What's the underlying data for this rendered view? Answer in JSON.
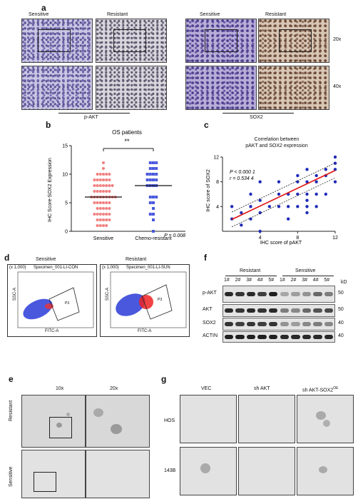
{
  "panels": {
    "a": "a",
    "b": "b",
    "c": "c",
    "d": "d",
    "e": "e",
    "f": "f",
    "g": "g"
  },
  "panel_a": {
    "col_sensitive": "Sensitive",
    "col_resistant": "Resistant",
    "mag_20": "20x",
    "mag_40": "40x",
    "label_left": "p-AKT",
    "label_right": "SOX2"
  },
  "panel_b": {
    "title": "OS patients",
    "ylabel": "IHC Score-SOX2 Expression",
    "sig": "**",
    "pvalue": "P = 0.008"
  },
  "panel_c": {
    "title_line1": "Correlation between",
    "title_line2": "pAKT and SOX2 expression",
    "stat_p": "P < 0.000 1",
    "stat_r": "r = 0.534 4"
  },
  "panel_d": {
    "title_left": "Sensitive",
    "title_right": "Resistant",
    "spec_left": "Specimen_001-LI-CON",
    "spec_right": "Specimen_001-LI-SUN",
    "scale": "(x 1,000)",
    "ylab": "SSC-A",
    "xlab_left": "FITC-A",
    "xlab_right": "FITC-A",
    "gate": "P3",
    "gate_right": "P3"
  },
  "panel_e": {
    "mag_10": "10x",
    "mag_20": "20x",
    "row_resistant": "Resistant",
    "row_sensitive": "Sensitive"
  },
  "panel_f": {
    "group_resistant": "Resistant",
    "group_sensitive": "Sensitive",
    "lanes": [
      "1#",
      "2#",
      "3#",
      "4#",
      "5#",
      "1#",
      "2#",
      "3#",
      "4#",
      "5#"
    ],
    "kd": "kD",
    "rows": [
      {
        "name": "p-AKT",
        "kd": "50"
      },
      {
        "name": "AKT",
        "kd": "50"
      },
      {
        "name": "SOX2",
        "kd": "40"
      },
      {
        "name": "ACTIN",
        "kd": "40"
      }
    ]
  },
  "panel_g": {
    "col_vec": "VEC",
    "col_shakt": "sh AKT",
    "col_shakt_sox2": "sh AKT-SOX2",
    "sup": "OE",
    "row_hos": "HOS",
    "row_143b": "143B"
  },
  "chart_data": [
    {
      "type": "scatter",
      "title": "OS patients",
      "ylabel": "IHC Score-SOX2 Expression",
      "categories": [
        "Sensitive",
        "Chemo-resistant"
      ],
      "ylim": [
        0,
        15
      ],
      "yticks": [
        0,
        5,
        10,
        15
      ],
      "series": [
        {
          "name": "Sensitive",
          "color": "#f08080",
          "marker": "circle",
          "mean": 6.0,
          "values": [
            12,
            11,
            10,
            10,
            10,
            10,
            10,
            9,
            9,
            9,
            9,
            9,
            9,
            8,
            8,
            8,
            8,
            8,
            8,
            8,
            7,
            7,
            7,
            7,
            7,
            7,
            6,
            6,
            6,
            6,
            6,
            6,
            6,
            6,
            6,
            5,
            5,
            5,
            5,
            5,
            5,
            4,
            4,
            4,
            4,
            4,
            3,
            3,
            3,
            3,
            3,
            3,
            2,
            2,
            2,
            2,
            2,
            1,
            1,
            1,
            1
          ]
        },
        {
          "name": "Chemo-resistant",
          "color": "#4a5adc",
          "marker": "square",
          "mean": 8.0,
          "values": [
            12,
            12,
            12,
            11,
            11,
            11,
            10,
            10,
            10,
            10,
            9,
            9,
            9,
            9,
            8,
            8,
            8,
            8,
            6,
            6,
            6,
            5,
            5,
            4,
            3,
            3,
            2,
            0
          ]
        }
      ]
    },
    {
      "type": "scatter",
      "title": "Correlation between pAKT and SOX2 expression",
      "xlabel": "IHC score  of pAKT",
      "ylabel": "IHC score of SOX2",
      "xlim": [
        0,
        12
      ],
      "ylim": [
        0,
        12
      ],
      "xticks": [
        0,
        4,
        8,
        12
      ],
      "yticks": [
        0,
        4,
        8,
        12
      ],
      "fit": {
        "intercept": 1.2,
        "slope": 0.72
      },
      "points": [
        [
          1,
          4
        ],
        [
          1,
          2
        ],
        [
          2,
          1
        ],
        [
          2,
          3
        ],
        [
          3,
          2
        ],
        [
          3,
          4
        ],
        [
          3,
          6
        ],
        [
          4,
          0
        ],
        [
          4,
          3
        ],
        [
          4,
          5
        ],
        [
          4,
          8
        ],
        [
          5,
          4
        ],
        [
          6,
          4
        ],
        [
          6,
          6
        ],
        [
          6,
          8
        ],
        [
          7,
          2
        ],
        [
          7,
          4
        ],
        [
          7,
          6
        ],
        [
          8,
          4
        ],
        [
          8,
          6
        ],
        [
          8,
          8
        ],
        [
          8,
          9
        ],
        [
          9,
          3
        ],
        [
          9,
          4
        ],
        [
          9,
          5
        ],
        [
          9,
          6
        ],
        [
          9,
          8
        ],
        [
          9,
          10
        ],
        [
          10,
          4
        ],
        [
          10,
          6
        ],
        [
          10,
          8
        ],
        [
          10,
          9
        ],
        [
          11,
          6
        ],
        [
          11,
          9
        ],
        [
          11,
          10
        ],
        [
          12,
          8
        ],
        [
          12,
          10
        ],
        [
          12,
          11
        ],
        [
          12,
          12
        ]
      ]
    }
  ]
}
